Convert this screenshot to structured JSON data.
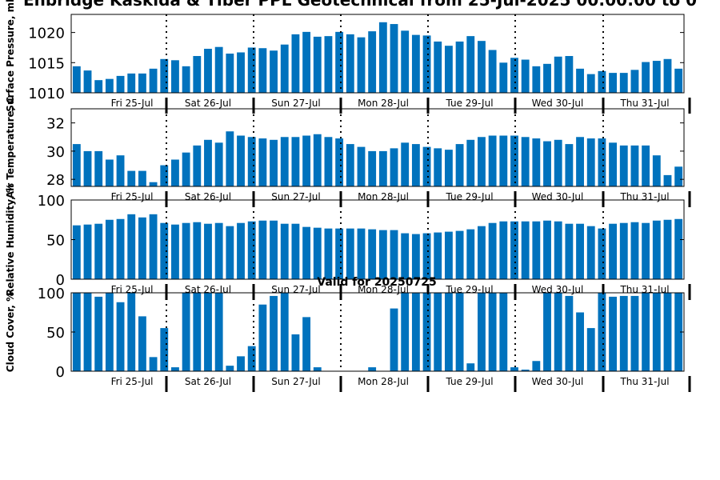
{
  "title": "Enbridge  Kaskida & Tiber PPL Geotechnical from 25-Jul-2025 00:00:00 to 0",
  "subtitle": "Valid for 20250725",
  "colors": {
    "bar": "#0072bd",
    "axis": "#000000",
    "divider": "#000000"
  },
  "day_labels": [
    "Fri 25-Jul",
    "Sat 26-Jul",
    "Sun 27-Jul",
    "Mon 28-Jul",
    "Tue 29-Jul",
    "Wed 30-Jul",
    "Thu 31-Jul"
  ],
  "chart_data": [
    {
      "type": "bar",
      "ylabel": "Surface Pressure, mb",
      "ylim": [
        1010,
        1023
      ],
      "yticks": [
        1010,
        1015,
        1020
      ],
      "values": [
        1014.4,
        1013.7,
        1012.1,
        1012.3,
        1012.8,
        1013.2,
        1013.2,
        1014.0,
        1015.6,
        1015.4,
        1014.4,
        1016.1,
        1017.3,
        1017.6,
        1016.5,
        1016.7,
        1017.5,
        1017.4,
        1017.0,
        1018.0,
        1019.7,
        1020.1,
        1019.3,
        1019.4,
        1020.1,
        1019.7,
        1019.2,
        1020.2,
        1021.7,
        1021.4,
        1020.3,
        1019.6,
        1019.5,
        1018.5,
        1017.8,
        1018.5,
        1019.4,
        1018.6,
        1017.1,
        1015.0,
        1015.8,
        1015.5,
        1014.4,
        1014.8,
        1016.0,
        1016.1,
        1014.0,
        1013.1,
        1013.6,
        1013.3,
        1013.3,
        1013.8,
        1015.1,
        1015.3,
        1015.6,
        1014.0
      ]
    },
    {
      "type": "bar",
      "ylabel": "Air Temperature, C",
      "ylim": [
        27.5,
        33
      ],
      "yticks": [
        28,
        30,
        32
      ],
      "values": [
        30.5,
        30.0,
        30.0,
        29.4,
        29.7,
        28.6,
        28.6,
        27.8,
        29.0,
        29.4,
        29.9,
        30.4,
        30.8,
        30.6,
        31.4,
        31.1,
        31.0,
        30.9,
        30.8,
        31.0,
        31.0,
        31.1,
        31.2,
        31.0,
        30.9,
        30.5,
        30.3,
        30.0,
        30.0,
        30.2,
        30.6,
        30.5,
        30.3,
        30.2,
        30.1,
        30.5,
        30.8,
        31.0,
        31.1,
        31.1,
        31.1,
        31.0,
        30.9,
        30.7,
        30.8,
        30.5,
        31.0,
        30.9,
        30.9,
        30.6,
        30.4,
        30.4,
        30.4,
        29.7,
        28.3,
        28.9
      ]
    },
    {
      "type": "bar",
      "ylabel": "Relative Humidity, %",
      "ylim": [
        0,
        100
      ],
      "yticks": [
        0,
        50,
        100
      ],
      "values": [
        68,
        69,
        70,
        75,
        76,
        82,
        78,
        82,
        71,
        69,
        71,
        72,
        70,
        71,
        67,
        71,
        73,
        74,
        74,
        70,
        70,
        66,
        65,
        64,
        64,
        64,
        64,
        63,
        62,
        62,
        58,
        57,
        58,
        59,
        60,
        61,
        63,
        67,
        71,
        73,
        73,
        73,
        73,
        74,
        73,
        70,
        70,
        67,
        64,
        70,
        71,
        72,
        71,
        74,
        75,
        76
      ]
    },
    {
      "type": "bar",
      "ylabel": "Cloud Cover, %",
      "ylim": [
        0,
        100
      ],
      "yticks": [
        0,
        50,
        100
      ],
      "values": [
        100,
        100,
        95,
        100,
        88,
        100,
        70,
        18,
        55,
        5,
        100,
        100,
        100,
        100,
        7,
        19,
        32,
        85,
        96,
        100,
        47,
        69,
        5,
        0,
        0,
        0,
        0,
        5,
        0,
        80,
        100,
        100,
        100,
        100,
        100,
        100,
        10,
        100,
        100,
        100,
        5,
        2,
        13,
        100,
        100,
        96,
        75,
        55,
        100,
        95,
        96,
        96,
        100,
        100,
        100,
        100
      ]
    }
  ]
}
